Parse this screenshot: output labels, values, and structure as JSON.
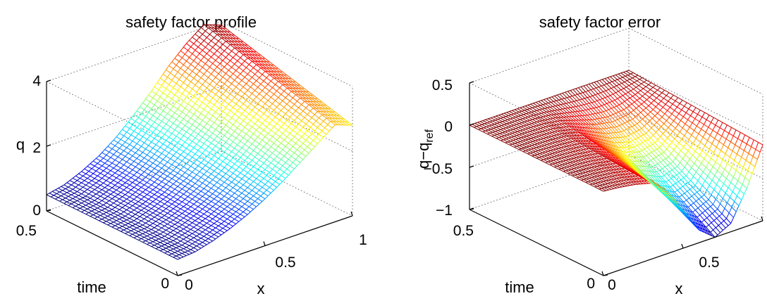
{
  "chart_data": [
    {
      "type": "surface",
      "title": "safety factor profile",
      "xlabel": "x",
      "ylabel": "time",
      "zlabel": "q",
      "xlim": [
        0,
        1
      ],
      "ylim": [
        0,
        0.5
      ],
      "zlim": [
        0,
        4
      ],
      "xticks": [
        "0",
        "0.5",
        "1"
      ],
      "yticks": [
        "0",
        "0.5"
      ],
      "zticks": [
        "0",
        "2",
        "4"
      ],
      "grid": true,
      "colormap": "jet",
      "surface_model": {
        "x_points": [
          0,
          0.1,
          0.2,
          0.3,
          0.4,
          0.5,
          0.6,
          0.7,
          0.8,
          0.9,
          1.0
        ],
        "q_at_time_0": [
          0.5,
          0.55,
          0.7,
          0.9,
          1.15,
          1.45,
          1.8,
          2.2,
          2.6,
          3.0,
          2.8
        ],
        "q_at_time_0.5": [
          0.5,
          0.62,
          0.85,
          1.15,
          1.55,
          2.05,
          2.6,
          3.2,
          3.7,
          4.1,
          3.9
        ]
      }
    },
    {
      "type": "surface",
      "title": "safety factor error",
      "xlabel": "x",
      "ylabel": "time",
      "zlabel_main": "q−q",
      "zlabel_sub": "ref",
      "xlim": [
        0,
        1
      ],
      "ylim": [
        0,
        0.5
      ],
      "zlim": [
        -1,
        0.5
      ],
      "xticks": [
        "0",
        "0.5"
      ],
      "yticks": [
        "0",
        "0.5"
      ],
      "zticks": [
        "0.5",
        "0",
        "−0.5",
        "−1"
      ],
      "grid": true,
      "colormap": "jet",
      "surface_model": {
        "x_points": [
          0,
          0.1,
          0.2,
          0.3,
          0.4,
          0.5,
          0.6,
          0.7,
          0.8,
          0.9,
          1.0
        ],
        "error_at_time_0": [
          0,
          -0.02,
          -0.05,
          -0.1,
          -0.25,
          -0.55,
          -0.85,
          -1.0,
          -0.9,
          -0.55,
          -0.1
        ],
        "error_at_time_0.5": [
          0,
          0,
          0,
          0,
          0,
          0,
          0,
          0,
          0,
          0,
          0
        ]
      }
    }
  ]
}
